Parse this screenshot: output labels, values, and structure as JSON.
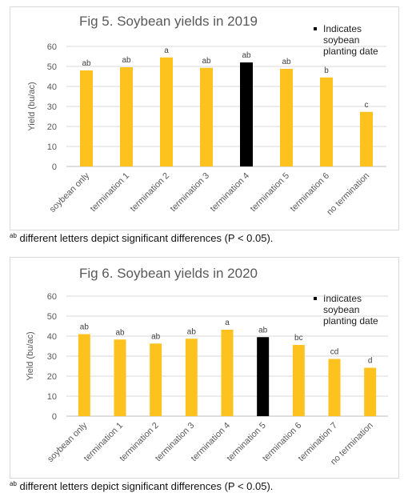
{
  "colors": {
    "bar": "#FDC21E",
    "highlight": "#000000",
    "grid": "#d9d9d9",
    "axis_text": "#595959"
  },
  "chart_data": [
    {
      "type": "bar",
      "title": "Fig 5. Soybean yields in 2019",
      "ylabel": "Yield (bu/ac)",
      "xlabel": "",
      "ylim": [
        0,
        60
      ],
      "yticks": [
        0,
        10,
        20,
        30,
        40,
        50,
        60
      ],
      "grid": true,
      "legend": {
        "position": "top-right",
        "label": "Indicates soybean planting date",
        "color": "#000000"
      },
      "categories": [
        "soybean only",
        "termination 1",
        "termination 2",
        "termination 3",
        "termination 4",
        "termination 5",
        "termination 6",
        "no termination"
      ],
      "values": [
        48,
        49.6,
        54.5,
        49.3,
        52,
        48.8,
        44.5,
        27.3
      ],
      "letters": [
        "ab",
        "ab",
        "a",
        "ab",
        "ab",
        "ab",
        "b",
        "c"
      ],
      "highlight_index": 4
    },
    {
      "type": "bar",
      "title": "Fig 6. Soybean yields in 2020",
      "ylabel": "Yield (bu/ac)",
      "xlabel": "",
      "ylim": [
        0,
        60
      ],
      "yticks": [
        0,
        10,
        20,
        30,
        40,
        50,
        60
      ],
      "grid": true,
      "legend": {
        "position": "top-right",
        "label": "Indicates soybean planting date",
        "color": "#000000"
      },
      "categories": [
        "soybean only",
        "termination 1",
        "termination 2",
        "termination 3",
        "termination 4",
        "termination 5",
        "termination 6",
        "termination 7",
        "no termination"
      ],
      "values": [
        41,
        38.3,
        36.3,
        38.7,
        43.2,
        39.5,
        35.6,
        28.6,
        24.2
      ],
      "letters": [
        "ab",
        "ab",
        "ab",
        "ab",
        "a",
        "ab",
        "bc",
        "cd",
        "d"
      ],
      "highlight_index": 5
    }
  ],
  "footnotes": [
    {
      "sup": "ab",
      "text": " different letters depict significant differences (P < 0.05)."
    },
    {
      "sup": "ab",
      "text": " different letters depict significant differences (P < 0.05)."
    }
  ]
}
